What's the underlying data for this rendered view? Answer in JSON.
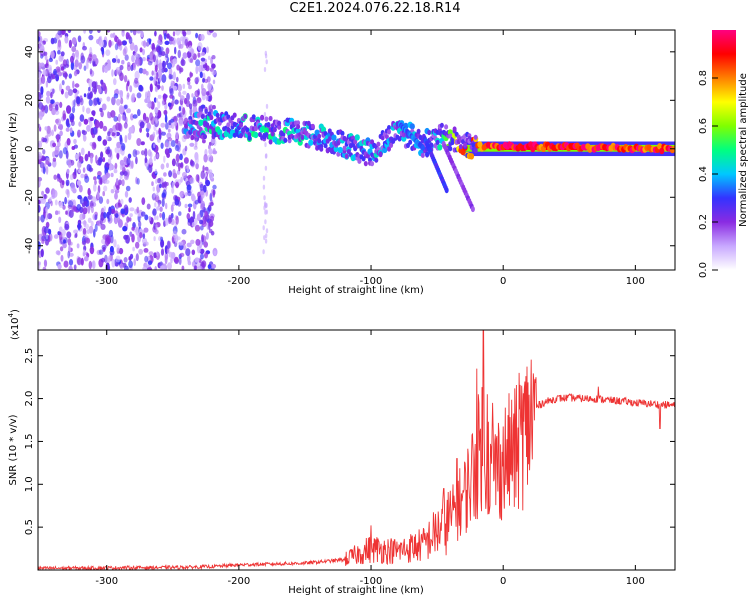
{
  "title": "C2E1.2024.076.22.18.R14",
  "chart_data": [
    {
      "type": "heatmap",
      "xlabel": "Height of straight line (km)",
      "ylabel": "Frequency (Hz)",
      "xlim": [
        -352,
        130
      ],
      "ylim": [
        -50,
        49
      ],
      "x_ticks": [
        -300,
        -200,
        -100,
        0,
        100
      ],
      "y_ticks": [
        -40,
        -20,
        0,
        20,
        40
      ],
      "grid": false,
      "colorbar": {
        "label": "Normalized spectral amplitude",
        "range": [
          0,
          1
        ],
        "ticks": [
          0.0,
          0.2,
          0.4,
          0.6,
          0.8
        ],
        "colors": [
          "#ffffff",
          "#c8a8ff",
          "#8a2be2",
          "#3333ff",
          "#00c8ff",
          "#00ff80",
          "#80ff00",
          "#ffff00",
          "#ff8000",
          "#ff0000",
          "#ff0080"
        ]
      },
      "noise_region": {
        "x_range": [
          -352,
          -218
        ],
        "f_range": [
          -50,
          49
        ],
        "amplitude": 0.3
      },
      "ridge": [
        {
          "x": -240,
          "f": 9.0,
          "amp": 0.35
        },
        {
          "x": -220,
          "f": 10.0,
          "amp": 0.45
        },
        {
          "x": -200,
          "f": 9.0,
          "amp": 0.45
        },
        {
          "x": -180,
          "f": 8.0,
          "amp": 0.45
        },
        {
          "x": -160,
          "f": 7.0,
          "amp": 0.45
        },
        {
          "x": -140,
          "f": 5.0,
          "amp": 0.4
        },
        {
          "x": -120,
          "f": 2.0,
          "amp": 0.4
        },
        {
          "x": -100,
          "f": -2.0,
          "amp": 0.4
        },
        {
          "x": -80,
          "f": 8.0,
          "amp": 0.4
        },
        {
          "x": -60,
          "f": 2.0,
          "amp": 0.4
        },
        {
          "x": -45,
          "f": 5.0,
          "amp": 0.45
        },
        {
          "x": -30,
          "f": 2.0,
          "amp": 0.85
        },
        {
          "x": -15,
          "f": 1.0,
          "amp": 0.85
        },
        {
          "x": 0,
          "f": 1.0,
          "amp": 0.9
        },
        {
          "x": 130,
          "f": 0.0,
          "amp": 0.9
        }
      ]
    },
    {
      "type": "line",
      "xlabel": "Height of straight line (km)",
      "ylabel": "SNR (10 * v/v)",
      "y_multiplier": "(x10",
      "y_multiplier_exponent": "4",
      "y_multiplier_close": ")",
      "xlim": [
        -352,
        130
      ],
      "ylim": [
        0,
        2.8
      ],
      "x_ticks": [
        -300,
        -200,
        -100,
        0,
        100
      ],
      "y_ticks": [
        0.5,
        1.0,
        1.5,
        2.0,
        2.5
      ],
      "y_tick_labels": [
        "0.5",
        "1.0",
        "1.5",
        "2.0",
        "2.5"
      ],
      "grid": false,
      "series": [
        {
          "color": "#ee3333",
          "x": [
            -352,
            -250,
            -220,
            -200,
            -150,
            -120,
            -100,
            -80,
            -60,
            -50,
            -40,
            -30,
            -25,
            -20,
            -15,
            -10,
            -5,
            0,
            5,
            10,
            15,
            20,
            25,
            30,
            40,
            50,
            60,
            70,
            80,
            90,
            100,
            110,
            120,
            130
          ],
          "y": [
            0.02,
            0.03,
            0.04,
            0.06,
            0.08,
            0.12,
            0.25,
            0.22,
            0.3,
            0.45,
            0.6,
            0.85,
            1.05,
            1.25,
            1.6,
            1.15,
            1.2,
            1.25,
            1.35,
            1.4,
            1.55,
            1.75,
            1.9,
            1.95,
            2.0,
            2.01,
            2.0,
            2.0,
            1.98,
            1.97,
            1.95,
            1.94,
            1.93,
            1.92
          ],
          "spikes": [
            {
              "x": -15,
              "y": 2.8
            },
            {
              "x": -20,
              "y": 2.35
            },
            {
              "x": -12,
              "y": 2.05
            },
            {
              "x": -8,
              "y": 1.95
            },
            {
              "x": 12,
              "y": 2.3
            },
            {
              "x": 14,
              "y": 2.15
            },
            {
              "x": -45,
              "y": 0.95
            },
            {
              "x": -35,
              "y": 1.3
            },
            {
              "x": -100,
              "y": 0.52
            },
            {
              "x": 72,
              "y": 2.14
            }
          ]
        }
      ]
    }
  ]
}
